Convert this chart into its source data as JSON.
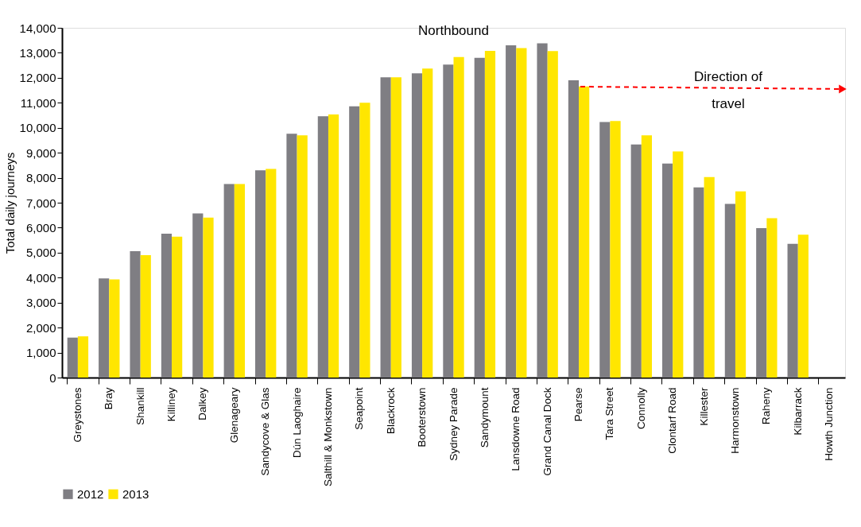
{
  "chart_data": {
    "type": "bar",
    "title": "Northbound",
    "ylabel": "Total daily journeys",
    "categories": [
      "Greystones",
      "Bray",
      "Shankill",
      "Killiney",
      "Dalkey",
      "Glenageary",
      "Sandycove & Glas",
      "Dún Laoghaire",
      "Salthill & Monkstown",
      "Seapoint",
      "Blackrock",
      "Booterstown",
      "Sydney Parade",
      "Sandymount",
      "Lansdowne Road",
      "Grand Canal Dock",
      "Pearse",
      "Tara Street",
      "Connolly",
      "Clontarf Road",
      "Killester",
      "Harmonstown",
      "Raheny",
      "Kilbarrack",
      "Howth Junction"
    ],
    "series": [
      {
        "name": "2012",
        "color": "#7f7e83",
        "values": [
          1600,
          3970,
          5060,
          5760,
          6570,
          7750,
          8300,
          9760,
          10460,
          10860,
          12020,
          12180,
          12530,
          12800,
          13300,
          13380,
          11900,
          10230,
          9330,
          8570,
          7610,
          6950,
          5980,
          5350,
          null
        ]
      },
      {
        "name": "2013",
        "color": "#ffe600",
        "values": [
          1650,
          3930,
          4900,
          5640,
          6400,
          7750,
          8350,
          9700,
          10530,
          11000,
          12020,
          12370,
          12830,
          13080,
          13190,
          13070,
          11650,
          10270,
          9700,
          9050,
          8030,
          7450,
          6380,
          5720,
          null
        ]
      }
    ],
    "ylim": [
      0,
      14000
    ],
    "yticks": [
      0,
      {
        "value": 1000,
        "label": "1,000"
      },
      {
        "value": 2000,
        "label": "2,000"
      },
      {
        "value": 3000,
        "label": "3,000"
      },
      {
        "value": 4000,
        "label": "4,000"
      },
      {
        "value": 5000,
        "label": "5,000"
      },
      {
        "value": 6000,
        "label": "6,000"
      },
      {
        "value": 7000,
        "label": "7,000"
      },
      {
        "value": 8000,
        "label": "8,000"
      },
      {
        "value": 9000,
        "label": "9,000"
      },
      {
        "value": 10000,
        "label": "10,000"
      },
      {
        "value": 11000,
        "label": "11,000"
      },
      {
        "value": 12000,
        "label": "12,000"
      },
      {
        "value": 13000,
        "label": "13,000"
      },
      {
        "value": 14000,
        "label": "14,000"
      }
    ],
    "grid": false,
    "legend": "bottom",
    "annotations": [
      "Direction of\ntravel"
    ]
  }
}
